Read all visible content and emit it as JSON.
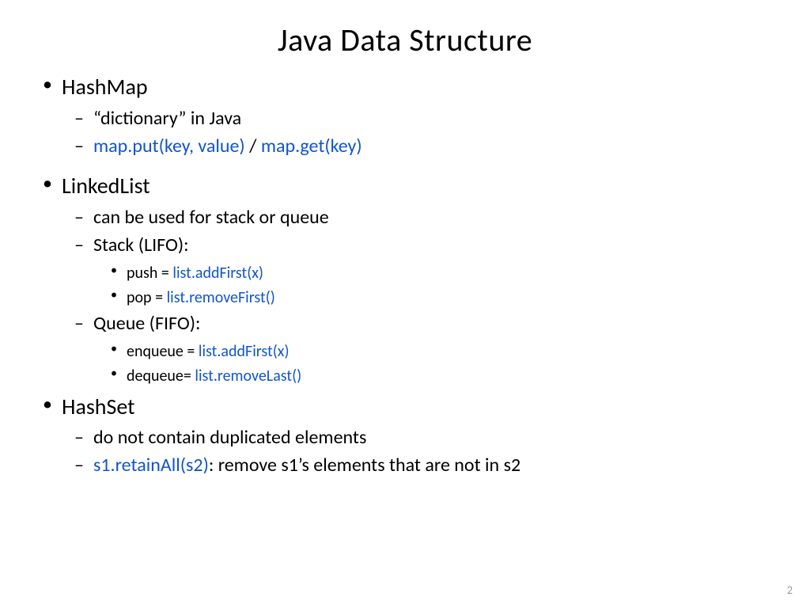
{
  "title": "Java Data Structure",
  "page_number": "2",
  "colors": {
    "text": "#000000",
    "code": "#1155cc",
    "background": "#ffffff",
    "page_num": "#9a9a9a"
  },
  "bullets": {
    "hashmap": {
      "label": "HashMap",
      "sub": {
        "dict": "“dictionary” in Java",
        "put": "map.put(key, value)",
        "sep": " /  ",
        "get": "map.get(key)"
      }
    },
    "linkedlist": {
      "label": "LinkedList",
      "sub": {
        "use": "can be used for stack or queue",
        "stack": {
          "label": "Stack (LIFO):",
          "push_pre": "push = ",
          "push_code": "list.addFirst(x)",
          "pop_pre": "pop =  ",
          "pop_code": "list.removeFirst()"
        },
        "queue": {
          "label": "Queue (FIFO):",
          "enq_pre": "enqueue = ",
          "enq_code": "list.addFirst(x)",
          "deq_pre": "dequeue= ",
          "deq_code": "list.removeLast()"
        }
      }
    },
    "hashset": {
      "label": "HashSet",
      "sub": {
        "dup": "do not contain duplicated elements",
        "retain_code": "s1.retainAll(s2)",
        "retain_rest": ": remove s1’s elements that are not in s2"
      }
    }
  }
}
